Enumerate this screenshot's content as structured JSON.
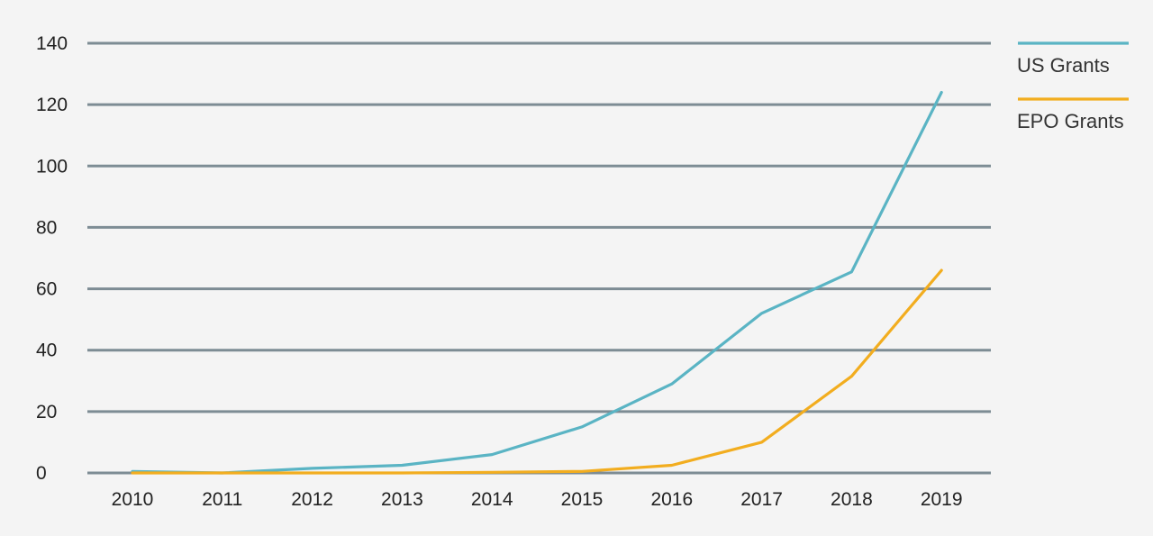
{
  "chart_data": {
    "type": "line",
    "title": "",
    "xlabel": "",
    "ylabel": "",
    "x": [
      "2010",
      "2011",
      "2012",
      "2013",
      "2014",
      "2015",
      "2016",
      "2017",
      "2018",
      "2019"
    ],
    "y_ticks": [
      0,
      20,
      40,
      60,
      80,
      100,
      120,
      140
    ],
    "ylim": [
      0,
      140
    ],
    "grid": true,
    "legend_position": "right",
    "series": [
      {
        "name": "US Grants",
        "color": "#5ab4c4",
        "values": [
          0.5,
          0,
          1.5,
          2.5,
          6,
          15,
          29,
          52,
          65.5,
          124
        ]
      },
      {
        "name": "EPO Grants",
        "color": "#f2ad1f",
        "values": [
          0,
          0,
          0,
          0,
          0.2,
          0.5,
          2.5,
          10,
          31.5,
          66
        ]
      }
    ]
  }
}
